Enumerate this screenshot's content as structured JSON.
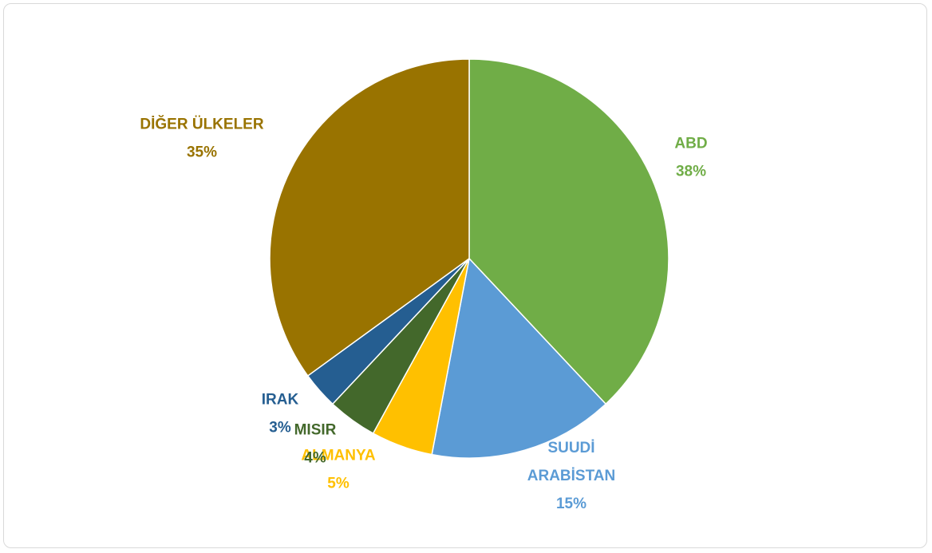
{
  "chart_data": {
    "type": "pie",
    "title": "",
    "start_angle_deg": 0,
    "direction": "clockwise",
    "slices": [
      {
        "label": [
          "ABD"
        ],
        "value": 38,
        "display": "38%",
        "color": "#70ad47"
      },
      {
        "label": [
          "SUUDİ",
          "ARABİSTAN"
        ],
        "value": 15,
        "display": "15%",
        "color": "#5b9bd5"
      },
      {
        "label": [
          "ALMANYA"
        ],
        "value": 5,
        "display": "5%",
        "color": "#ffc000"
      },
      {
        "label": [
          "MISIR"
        ],
        "value": 4,
        "display": "4%",
        "color": "#43682b"
      },
      {
        "label": [
          "IRAK"
        ],
        "value": 3,
        "display": "3%",
        "color": "#255e91"
      },
      {
        "label": [
          "DİĞER ÜLKELER"
        ],
        "value": 35,
        "display": "35%",
        "color": "#997300"
      }
    ],
    "legend": "none",
    "data_labels": "outside"
  }
}
